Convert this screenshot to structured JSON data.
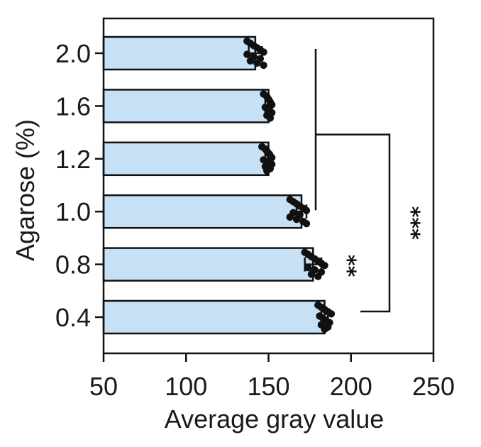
{
  "chart_data": {
    "type": "bar",
    "orientation": "horizontal",
    "xlabel": "Average gray value",
    "ylabel": "Agarose (%)",
    "xlim": [
      50,
      250
    ],
    "xticks": [
      "50",
      "100",
      "150",
      "200",
      "250"
    ],
    "categories": [
      "2.0",
      "1.6",
      "1.2",
      "1.0",
      "0.8",
      "0.4"
    ],
    "values": [
      142,
      150,
      150,
      170,
      177,
      184
    ],
    "error": [
      4,
      2,
      2,
      3,
      5,
      2
    ],
    "points": [
      [
        137,
        139,
        141,
        143,
        145,
        147,
        137,
        141,
        145,
        139,
        143,
        147
      ],
      [
        147,
        149,
        150,
        151,
        152,
        148,
        150,
        152,
        149,
        151
      ],
      [
        146,
        148,
        149,
        150,
        151,
        152,
        147,
        150,
        152,
        148,
        151,
        149
      ],
      [
        163,
        165,
        167,
        169,
        171,
        173,
        165,
        169,
        163,
        167,
        171,
        173
      ],
      [
        172,
        174,
        176,
        178,
        180,
        182,
        184,
        174,
        178,
        182,
        176,
        180
      ],
      [
        180,
        182,
        184,
        186,
        188,
        181,
        183,
        185,
        187,
        182,
        186,
        184
      ]
    ],
    "bar_color": "#c6e0f6",
    "significance": [
      {
        "label": "**",
        "target": "0.8"
      },
      {
        "label": "***",
        "from": [
          "2.0",
          "1.0"
        ],
        "to": "0.4"
      }
    ],
    "grid": false,
    "legend": "none"
  }
}
